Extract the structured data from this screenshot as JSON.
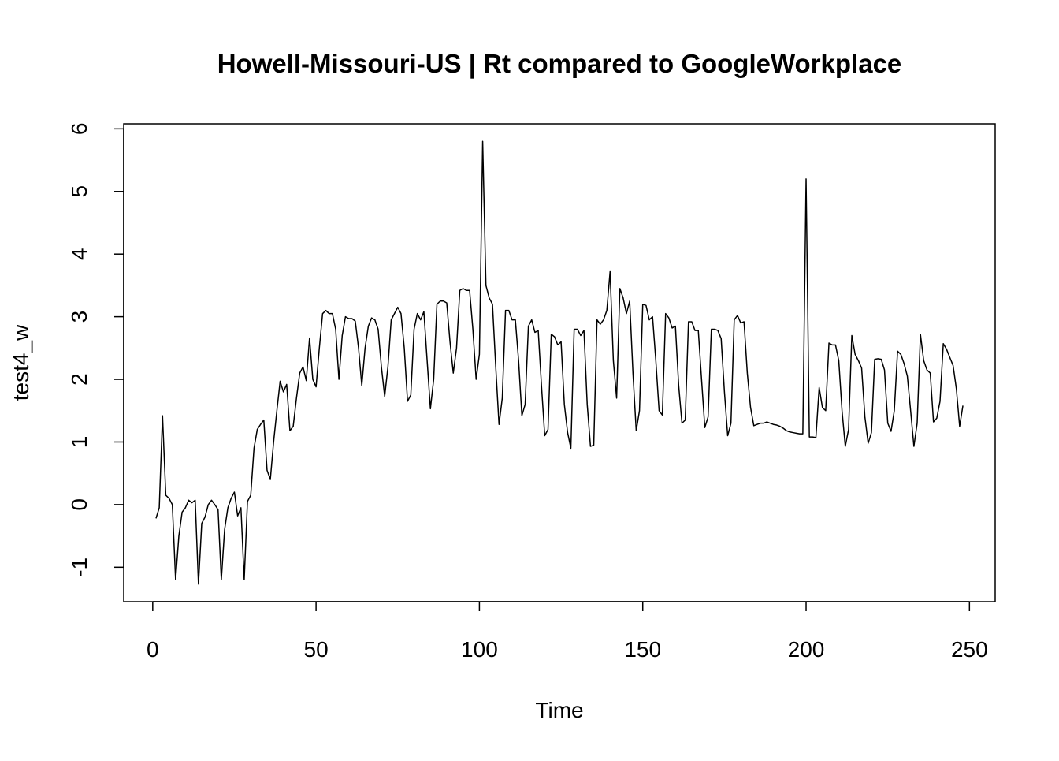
{
  "chart_data": {
    "type": "line",
    "title": "Howell-Missouri-US | Rt compared to GoogleWorkplace",
    "x_label": "Time",
    "y_label": "test4_w",
    "xlim": [
      -8.88,
      257.88
    ],
    "ylim": [
      -1.55,
      6.08
    ],
    "xticks": [
      0,
      50,
      100,
      150,
      200,
      250
    ],
    "yticks": [
      -1,
      0,
      1,
      2,
      3,
      4,
      5,
      6
    ],
    "color": "#000000",
    "x": [
      1,
      2,
      3,
      4,
      5,
      6,
      7,
      8,
      9,
      10,
      11,
      12,
      13,
      14,
      15,
      16,
      17,
      18,
      19,
      20,
      21,
      22,
      23,
      24,
      25,
      26,
      27,
      28,
      29,
      30,
      31,
      32,
      33,
      34,
      35,
      36,
      37,
      38,
      39,
      40,
      41,
      42,
      43,
      44,
      45,
      46,
      47,
      48,
      49,
      50,
      51,
      52,
      53,
      54,
      55,
      56,
      57,
      58,
      59,
      60,
      61,
      62,
      63,
      64,
      65,
      66,
      67,
      68,
      69,
      70,
      71,
      72,
      73,
      74,
      75,
      76,
      77,
      78,
      79,
      80,
      81,
      82,
      83,
      84,
      85,
      86,
      87,
      88,
      89,
      90,
      91,
      92,
      93,
      94,
      95,
      96,
      97,
      98,
      99,
      100,
      101,
      102,
      103,
      104,
      105,
      106,
      107,
      108,
      109,
      110,
      111,
      112,
      113,
      114,
      115,
      116,
      117,
      118,
      119,
      120,
      121,
      122,
      123,
      124,
      125,
      126,
      127,
      128,
      129,
      130,
      131,
      132,
      133,
      134,
      135,
      136,
      137,
      138,
      139,
      140,
      141,
      142,
      143,
      144,
      145,
      146,
      147,
      148,
      149,
      150,
      151,
      152,
      153,
      154,
      155,
      156,
      157,
      158,
      159,
      160,
      161,
      162,
      163,
      164,
      165,
      166,
      167,
      168,
      169,
      170,
      171,
      172,
      173,
      174,
      175,
      176,
      177,
      178,
      179,
      180,
      181,
      182,
      183,
      184,
      185,
      186,
      187,
      188,
      189,
      190,
      191,
      192,
      193,
      194,
      195,
      196,
      197,
      198,
      199,
      200,
      201,
      202,
      203,
      204,
      205,
      206,
      207,
      208,
      209,
      210,
      211,
      212,
      213,
      214,
      215,
      216,
      217,
      218,
      219,
      220,
      221,
      222,
      223,
      224,
      225,
      226,
      227,
      228,
      229,
      230,
      231,
      232,
      233,
      234,
      235,
      236,
      237,
      238,
      239,
      240,
      241,
      242,
      243,
      244,
      245,
      246,
      247,
      248
    ],
    "values": [
      -0.22,
      -0.05,
      1.42,
      0.15,
      0.1,
      0.0,
      -1.2,
      -0.5,
      -0.12,
      -0.05,
      0.07,
      0.03,
      0.07,
      -1.27,
      -0.3,
      -0.2,
      0.0,
      0.07,
      0.0,
      -0.08,
      -1.2,
      -0.4,
      -0.05,
      0.1,
      0.2,
      -0.18,
      -0.05,
      -1.2,
      0.05,
      0.15,
      0.9,
      1.2,
      1.28,
      1.35,
      0.55,
      0.4,
      1.0,
      1.5,
      1.97,
      1.8,
      1.92,
      1.18,
      1.25,
      1.7,
      2.1,
      2.2,
      1.98,
      2.66,
      2.0,
      1.88,
      2.5,
      3.05,
      3.1,
      3.05,
      3.05,
      2.8,
      2.0,
      2.7,
      3.0,
      2.97,
      2.97,
      2.93,
      2.5,
      1.9,
      2.5,
      2.85,
      2.98,
      2.95,
      2.8,
      2.2,
      1.73,
      2.2,
      2.95,
      3.05,
      3.15,
      3.05,
      2.5,
      1.65,
      1.75,
      2.8,
      3.05,
      2.95,
      3.08,
      2.3,
      1.53,
      2.0,
      3.2,
      3.25,
      3.25,
      3.22,
      2.6,
      2.1,
      2.5,
      3.42,
      3.45,
      3.42,
      3.42,
      2.8,
      2.0,
      2.4,
      5.8,
      3.5,
      3.3,
      3.2,
      2.2,
      1.28,
      1.7,
      3.1,
      3.1,
      2.95,
      2.95,
      2.3,
      1.42,
      1.6,
      2.85,
      2.95,
      2.75,
      2.78,
      1.9,
      1.1,
      1.2,
      2.72,
      2.68,
      2.55,
      2.6,
      1.6,
      1.15,
      0.9,
      2.8,
      2.8,
      2.7,
      2.78,
      1.6,
      0.93,
      0.95,
      2.95,
      2.88,
      2.95,
      3.1,
      3.72,
      2.3,
      1.7,
      3.45,
      3.3,
      3.05,
      3.25,
      2.1,
      1.18,
      1.5,
      3.2,
      3.18,
      2.95,
      3.0,
      2.3,
      1.5,
      1.43,
      3.05,
      2.98,
      2.82,
      2.85,
      1.9,
      1.3,
      1.35,
      2.92,
      2.92,
      2.78,
      2.78,
      2.0,
      1.23,
      1.4,
      2.8,
      2.8,
      2.78,
      2.65,
      1.8,
      1.1,
      1.3,
      2.95,
      3.02,
      2.9,
      2.92,
      2.1,
      1.55,
      1.26,
      1.28,
      1.3,
      1.3,
      1.32,
      1.3,
      1.28,
      1.27,
      1.25,
      1.22,
      1.18,
      1.16,
      1.15,
      1.14,
      1.13,
      1.13,
      5.2,
      1.08,
      1.08,
      1.07,
      1.87,
      1.55,
      1.5,
      2.58,
      2.55,
      2.55,
      2.3,
      1.5,
      0.93,
      1.2,
      2.7,
      2.4,
      2.3,
      2.18,
      1.4,
      0.98,
      1.15,
      2.32,
      2.33,
      2.32,
      2.15,
      1.3,
      1.17,
      1.5,
      2.45,
      2.4,
      2.25,
      2.05,
      1.5,
      0.93,
      1.3,
      2.72,
      2.3,
      2.15,
      2.1,
      1.32,
      1.38,
      1.65,
      2.57,
      2.48,
      2.35,
      2.22,
      1.85,
      1.25,
      1.58
    ]
  }
}
